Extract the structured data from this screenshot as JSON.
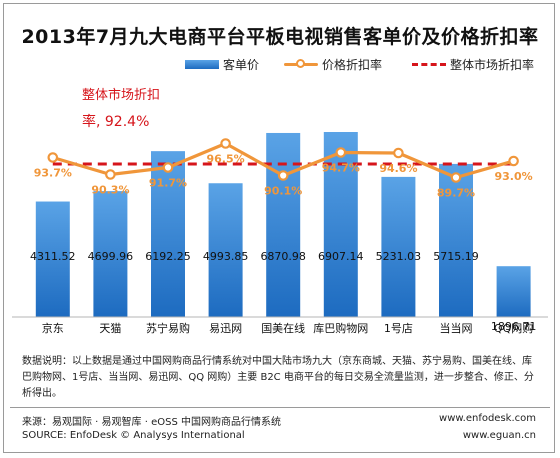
{
  "title": "2013年7月九大电商平台平板电视销售客单价及价格折扣率",
  "legend": {
    "bar": "客单价",
    "line": "价格折扣率",
    "dash": "整体市场折扣率"
  },
  "overall": {
    "label_line1": "整体市场折扣",
    "label_line2": "率, 92.4%"
  },
  "chart_data": {
    "type": "bar",
    "categories": [
      "京东",
      "天猫",
      "苏宁易购",
      "易迅网",
      "国美在线",
      "库巴购物网",
      "1号店",
      "当当网",
      "QQ网购"
    ],
    "series": [
      {
        "name": "客单价",
        "values": [
          4311.52,
          4699.96,
          6192.25,
          4993.85,
          6870.98,
          6907.14,
          5231.03,
          5715.19,
          1896.71
        ],
        "labels": [
          "4311.52",
          "4699.96",
          "6192.25",
          "4993.85",
          "6870.98",
          "6907.14",
          "5231.03",
          "5715.19",
          "1896.71"
        ]
      },
      {
        "name": "价格折扣率",
        "values": [
          93.7,
          90.3,
          91.7,
          96.5,
          90.1,
          94.7,
          94.6,
          89.7,
          93.0
        ],
        "labels": [
          "93.7%",
          "90.3%",
          "91.7%",
          "96.5%",
          "90.1%",
          "94.7%",
          "94.6%",
          "89.7%",
          "93.0%"
        ]
      },
      {
        "name": "整体市场折扣率",
        "value": 92.4
      }
    ],
    "colors": {
      "bar_top": "#5aa3e6",
      "bar_bottom": "#1d6bc0",
      "line": "#f0963a",
      "dash": "#d6151b",
      "line_label": "#f0963a"
    }
  },
  "footer": {
    "note": "数据说明：以上数据是通过中国网购商品行情系统对中国大陆市场九大（京东商城、天猫、苏宁易购、国美在线、库巴购物网、1号店、当当网、易迅网、QQ 网购）主要 B2C 电商平台的每日交易全流量监测，进一步整合、修正、分析得出。",
    "source_cn": "来源：易观国际 · 易观智库 · eOSS 中国网购商品行情系统",
    "source_en": "SOURCE: EnfoDesk © Analysys International",
    "url1": "www.enfodesk.com",
    "url2": "www.eguan.cn"
  }
}
